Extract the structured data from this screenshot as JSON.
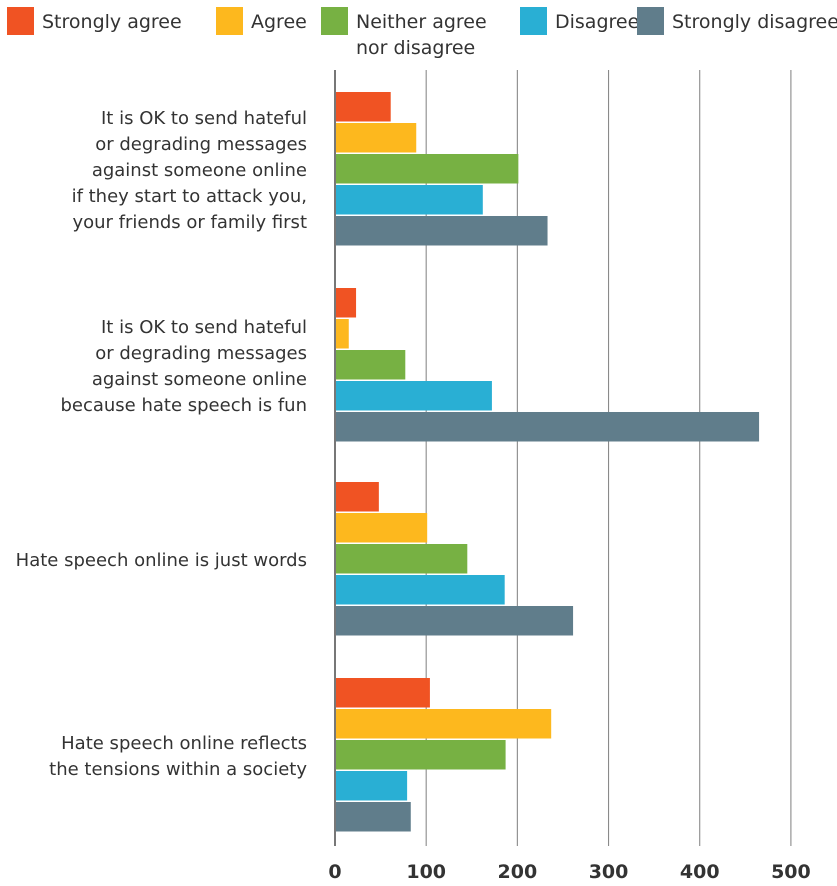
{
  "chart_data": {
    "type": "bar",
    "orientation": "horizontal",
    "categories": [
      [
        "It is OK to send hateful",
        "or degrading messages",
        "against someone online",
        "if they start to attack you,",
        "your friends or family first"
      ],
      [
        "It is OK to send hateful",
        "or degrading messages",
        "against someone online",
        "because hate speech is fun"
      ],
      [
        "Hate speech online is just words"
      ],
      [
        "Hate speech online reflects",
        "the tensions within a society"
      ]
    ],
    "series": [
      {
        "name": "Strongly agree",
        "name_lines": [
          "Strongly agree"
        ],
        "color": "#f05323",
        "values": [
          60,
          22,
          47,
          103
        ]
      },
      {
        "name": "Agree",
        "name_lines": [
          "Agree"
        ],
        "color": "#fdb81e",
        "values": [
          88,
          14,
          100,
          236
        ]
      },
      {
        "name": "Neither agree nor disagree",
        "name_lines": [
          "Neither agree",
          "nor disagree"
        ],
        "color": "#77b143",
        "values": [
          200,
          76,
          144,
          186
        ]
      },
      {
        "name": "Disagree",
        "name_lines": [
          "Disagree"
        ],
        "color": "#29afd4",
        "values": [
          161,
          171,
          185,
          78
        ]
      },
      {
        "name": "Strongly disagree",
        "name_lines": [
          "Strongly disagree"
        ],
        "color": "#607d8b",
        "values": [
          232,
          464,
          260,
          82
        ]
      }
    ],
    "xlim": [
      0,
      500
    ],
    "xticks": [
      "0",
      "100",
      "200",
      "300",
      "400",
      "500"
    ],
    "xlabel": "",
    "ylabel": "",
    "title": "",
    "grid": "vertical",
    "legend": "top"
  }
}
